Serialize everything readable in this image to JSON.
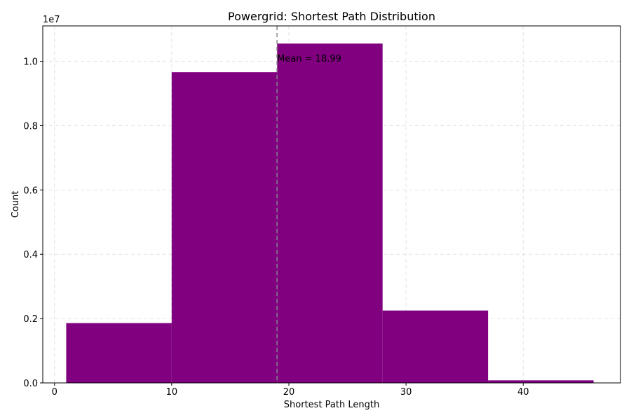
{
  "chart_data": {
    "type": "bar",
    "title": "Powergrid: Shortest Path Distribution",
    "xlabel": "Shortest Path Length",
    "ylabel": "Count",
    "y_offset_label": "1e7",
    "xlim": [
      -1,
      48.3
    ],
    "ylim": [
      0,
      11100000
    ],
    "xticks": [
      0,
      10,
      20,
      30,
      40
    ],
    "yticks": [
      0,
      2000000,
      4000000,
      6000000,
      8000000,
      10000000
    ],
    "ytick_labels": [
      "0.0",
      "0.2",
      "0.4",
      "0.6",
      "0.8",
      "1.0"
    ],
    "grid": true,
    "bins": [
      {
        "x0": 1,
        "x1": 10,
        "value": 1860000
      },
      {
        "x0": 10,
        "x1": 19,
        "value": 9660000
      },
      {
        "x0": 19,
        "x1": 28,
        "value": 10550000
      },
      {
        "x0": 28,
        "x1": 37,
        "value": 2250000
      },
      {
        "x0": 37,
        "x1": 46,
        "value": 80000
      }
    ],
    "mean_line": {
      "x": 18.99,
      "label": "Mean = 18.99"
    },
    "bar_color": "#800080",
    "mean_line_color": "#888888",
    "grid_color": "#e2e2e2"
  }
}
